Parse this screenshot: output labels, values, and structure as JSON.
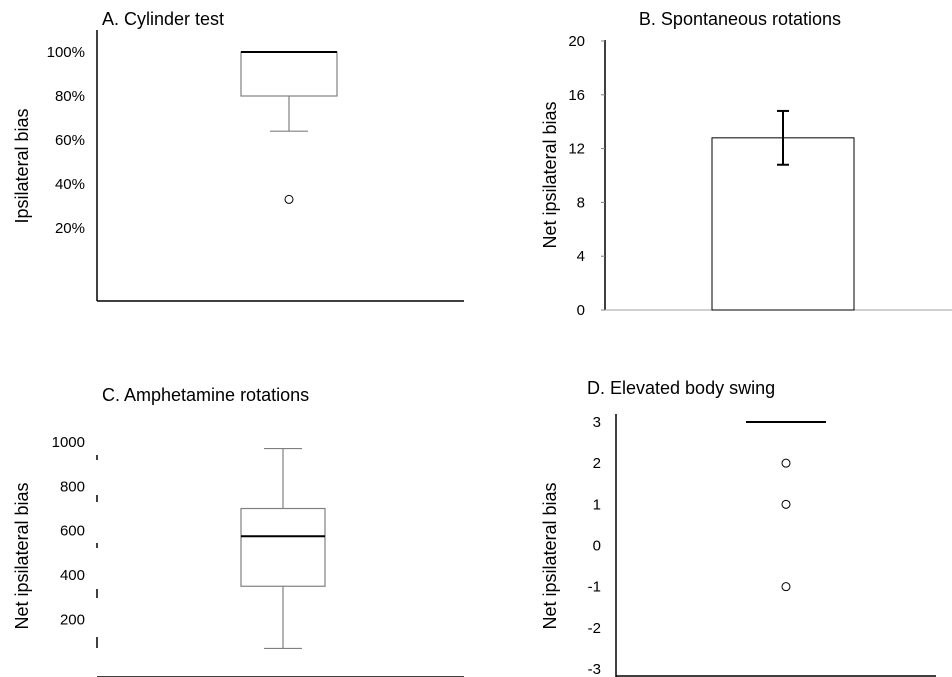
{
  "chart_data": [
    {
      "panel": "A",
      "type": "box",
      "title": "A. Cylinder test",
      "ylabel": "Ipsilateral bias",
      "yticks": [
        {
          "value": 20,
          "label": "20%"
        },
        {
          "value": 40,
          "label": "40%"
        },
        {
          "value": 60,
          "label": "60%"
        },
        {
          "value": 80,
          "label": "80%"
        },
        {
          "value": 100,
          "label": "100%"
        }
      ],
      "ylim": [
        5,
        105
      ],
      "box": {
        "whisker_low": 64,
        "q1": 80,
        "median": 100,
        "q3": 100,
        "whisker_high": 100
      },
      "outliers": [
        33
      ]
    },
    {
      "panel": "B",
      "type": "bar",
      "title": "B. Spontaneous rotations",
      "ylabel": "Net ipsilateral bias",
      "yticks": [
        {
          "value": 0,
          "label": "0"
        },
        {
          "value": 4,
          "label": "4"
        },
        {
          "value": 8,
          "label": "8"
        },
        {
          "value": 12,
          "label": "12"
        },
        {
          "value": 16,
          "label": "16"
        },
        {
          "value": 20,
          "label": "20"
        }
      ],
      "ylim": [
        0,
        20
      ],
      "values": [
        12.8
      ],
      "error": [
        2.0
      ]
    },
    {
      "panel": "C",
      "type": "box",
      "title": "C. Amphetamine rotations",
      "ylabel": "Net ipsilateral bias",
      "yticks": [
        {
          "value": 200,
          "label": "200"
        },
        {
          "value": 400,
          "label": "400"
        },
        {
          "value": 600,
          "label": "600"
        },
        {
          "value": 800,
          "label": "800"
        },
        {
          "value": 1000,
          "label": "1000"
        }
      ],
      "ylim": [
        0,
        1040
      ],
      "box": {
        "whisker_low": 70,
        "q1": 350,
        "median": 575,
        "q3": 700,
        "whisker_high": 970
      },
      "outliers": []
    },
    {
      "panel": "D",
      "type": "box",
      "title": "D. Elevated body swing",
      "ylabel": "Net ipsilateral bias",
      "yticks": [
        {
          "value": -3,
          "label": "-3"
        },
        {
          "value": -2,
          "label": "-2"
        },
        {
          "value": -1,
          "label": "-1"
        },
        {
          "value": 0,
          "label": "0"
        },
        {
          "value": 1,
          "label": "1"
        },
        {
          "value": 2,
          "label": "2"
        },
        {
          "value": 3,
          "label": "3"
        }
      ],
      "ylim": [
        -3,
        3
      ],
      "box": {
        "whisker_low": 3,
        "q1": 3,
        "median": 3,
        "q3": 3,
        "whisker_high": 3
      },
      "outliers": [
        2,
        1,
        -1
      ]
    }
  ]
}
